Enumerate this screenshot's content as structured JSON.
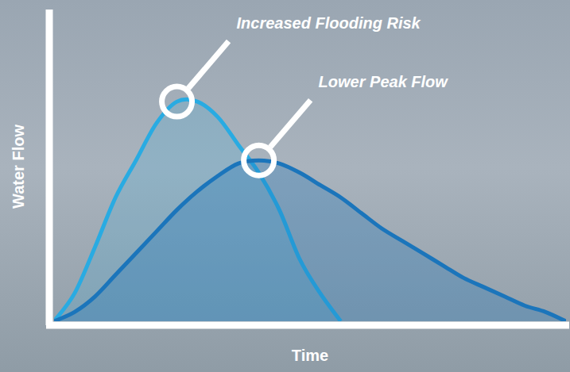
{
  "chart_data": {
    "type": "line",
    "x_label": "Time",
    "y_label": "Water Flow",
    "annotations": [
      "Increased Flooding Risk",
      "Lower Peak Flow"
    ],
    "x": [
      0,
      4,
      8,
      12,
      16,
      20,
      24,
      28,
      32,
      36,
      40,
      44,
      48,
      52,
      56,
      60,
      64,
      68,
      72,
      76,
      80,
      84,
      88,
      92,
      96,
      100
    ],
    "series": [
      {
        "color": "#29abe2",
        "values": [
          0,
          9,
          24,
          40,
          52,
          64,
          71,
          71,
          66,
          57,
          48,
          36,
          20,
          9,
          0,
          null,
          null,
          null,
          null,
          null,
          null,
          null,
          null,
          null,
          null,
          null
        ]
      },
      {
        "color": "#1b75bb",
        "values": [
          0,
          3,
          8,
          15,
          22,
          29,
          36,
          42,
          47,
          51,
          52,
          51,
          48,
          44,
          40,
          35,
          30,
          26,
          22,
          18,
          14,
          11,
          8,
          5,
          3,
          0
        ]
      }
    ],
    "xlim": [
      0,
      100
    ],
    "ylim": [
      0,
      100
    ],
    "tick_labels": false,
    "grid": false
  }
}
